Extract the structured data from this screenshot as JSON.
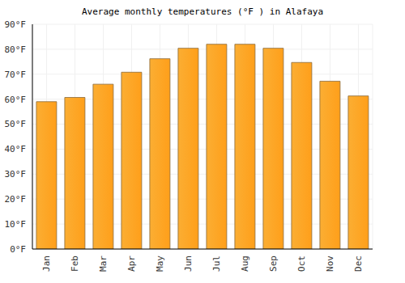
{
  "chart_data": {
    "type": "bar",
    "title": "Average monthly temperatures (°F ) in Alafaya",
    "categories": [
      "Jan",
      "Feb",
      "Mar",
      "Apr",
      "May",
      "Jun",
      "Jul",
      "Aug",
      "Sep",
      "Oct",
      "Nov",
      "Dec"
    ],
    "values": [
      59,
      60.7,
      66,
      70.8,
      76.2,
      80.4,
      82,
      82,
      80.4,
      74.7,
      67.2,
      61.3
    ],
    "color": "#fbae33",
    "ylim": [
      0,
      90
    ],
    "yticks": [
      {
        "value": 0,
        "label": "0°F"
      },
      {
        "value": 10,
        "label": "10°F"
      },
      {
        "value": 20,
        "label": "20°F"
      },
      {
        "value": 30,
        "label": "30°F"
      },
      {
        "value": 40,
        "label": "40°F"
      },
      {
        "value": 50,
        "label": "50°F"
      },
      {
        "value": 60,
        "label": "60°F"
      },
      {
        "value": 70,
        "label": "70°F"
      },
      {
        "value": 80,
        "label": "80°F"
      },
      {
        "value": 90,
        "label": "90°F"
      }
    ],
    "grid": true
  }
}
